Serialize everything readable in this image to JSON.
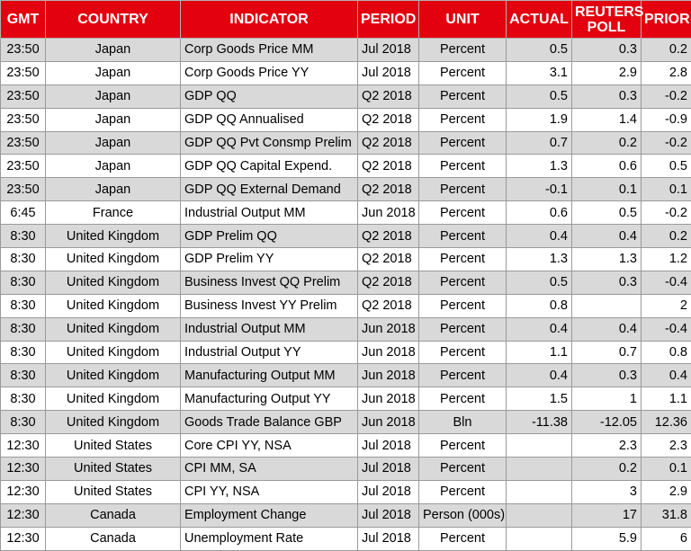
{
  "table": {
    "header": [
      "GMT",
      "COUNTRY",
      "INDICATOR",
      "PERIOD",
      "UNIT",
      "ACTUAL",
      "REUTERS POLL",
      "PRIOR"
    ],
    "rows": [
      [
        "23:50",
        "Japan",
        "Corp Goods Price MM",
        "Jul 2018",
        "Percent",
        "0.5",
        "0.3",
        "0.2"
      ],
      [
        "23:50",
        "Japan",
        "Corp Goods Price YY",
        "Jul 2018",
        "Percent",
        "3.1",
        "2.9",
        "2.8"
      ],
      [
        "23:50",
        "Japan",
        "GDP QQ",
        "Q2 2018",
        "Percent",
        "0.5",
        "0.3",
        "-0.2"
      ],
      [
        "23:50",
        "Japan",
        "GDP QQ Annualised",
        "Q2 2018",
        "Percent",
        "1.9",
        "1.4",
        "-0.9"
      ],
      [
        "23:50",
        "Japan",
        "GDP QQ Pvt Consmp Prelim",
        "Q2 2018",
        "Percent",
        "0.7",
        "0.2",
        "-0.2"
      ],
      [
        "23:50",
        "Japan",
        "GDP QQ Capital Expend.",
        "Q2 2018",
        "Percent",
        "1.3",
        "0.6",
        "0.5"
      ],
      [
        "23:50",
        "Japan",
        "GDP QQ External Demand",
        "Q2 2018",
        "Percent",
        "-0.1",
        "0.1",
        "0.1"
      ],
      [
        "6:45",
        "France",
        "Industrial Output MM",
        "Jun 2018",
        "Percent",
        "0.6",
        "0.5",
        "-0.2"
      ],
      [
        "8:30",
        "United Kingdom",
        "GDP Prelim QQ",
        "Q2 2018",
        "Percent",
        "0.4",
        "0.4",
        "0.2"
      ],
      [
        "8:30",
        "United Kingdom",
        "GDP Prelim YY",
        "Q2 2018",
        "Percent",
        "1.3",
        "1.3",
        "1.2"
      ],
      [
        "8:30",
        "United Kingdom",
        "Business Invest QQ Prelim",
        "Q2 2018",
        "Percent",
        "0.5",
        "0.3",
        "-0.4"
      ],
      [
        "8:30",
        "United Kingdom",
        "Business Invest YY Prelim",
        "Q2 2018",
        "Percent",
        "0.8",
        null,
        "2"
      ],
      [
        "8:30",
        "United Kingdom",
        "Industrial Output MM",
        "Jun 2018",
        "Percent",
        "0.4",
        "0.4",
        "-0.4"
      ],
      [
        "8:30",
        "United Kingdom",
        "Industrial Output YY",
        "Jun 2018",
        "Percent",
        "1.1",
        "0.7",
        "0.8"
      ],
      [
        "8:30",
        "United Kingdom",
        "Manufacturing Output MM",
        "Jun 2018",
        "Percent",
        "0.4",
        "0.3",
        "0.4"
      ],
      [
        "8:30",
        "United Kingdom",
        "Manufacturing Output YY",
        "Jun 2018",
        "Percent",
        "1.5",
        "1",
        "1.1"
      ],
      [
        "8:30",
        "United Kingdom",
        "Goods Trade Balance GBP",
        "Jun 2018",
        "Bln",
        "-11.38",
        "-12.05",
        "12.36"
      ],
      [
        "12:30",
        "United States",
        "Core CPI YY, NSA",
        "Jul 2018",
        "Percent",
        null,
        "2.3",
        "2.3"
      ],
      [
        "12:30",
        "United States",
        "CPI MM, SA",
        "Jul 2018",
        "Percent",
        null,
        "0.2",
        "0.1"
      ],
      [
        "12:30",
        "United States",
        "CPI YY, NSA",
        "Jul 2018",
        "Percent",
        null,
        "3",
        "2.9"
      ],
      [
        "12:30",
        "Canada",
        "Employment Change",
        "Jul 2018",
        "Person (000s)",
        null,
        "17",
        "31.8"
      ],
      [
        "12:30",
        "Canada",
        "Unemployment Rate",
        "Jul 2018",
        "Percent",
        null,
        "5.9",
        "6"
      ]
    ]
  }
}
